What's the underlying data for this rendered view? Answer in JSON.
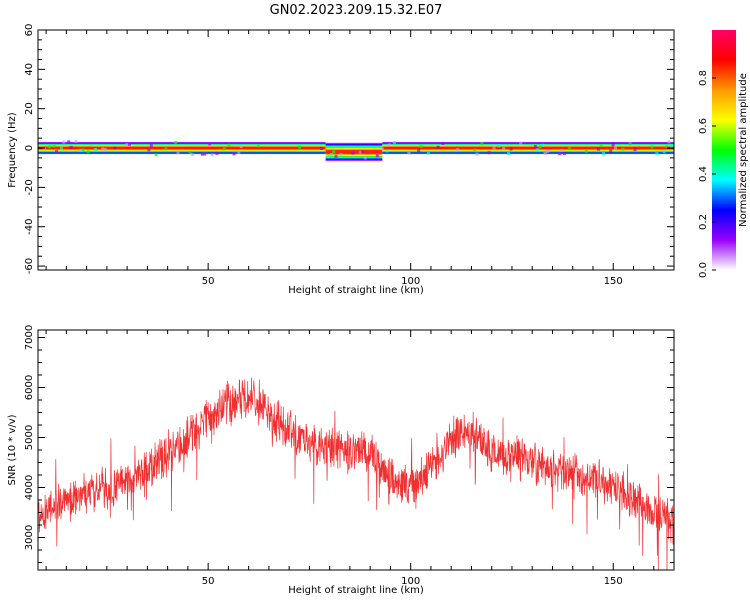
{
  "figure": {
    "title": "GN02.2023.209.15.32.E07"
  },
  "chart_data": [
    {
      "type": "heatmap",
      "xlabel": "Height of straight line (km)",
      "ylabel": "Frequency (Hz)",
      "xlim": [
        8,
        165
      ],
      "ylim": [
        -62,
        60
      ],
      "xticks": [
        50,
        100,
        150
      ],
      "xtick_labels": [
        "50",
        "100",
        "150"
      ],
      "yticks": [
        -60,
        -40,
        -20,
        0,
        20,
        40,
        60
      ],
      "ytick_labels": [
        "-60",
        "-40",
        "-20",
        "0",
        "20",
        "40",
        "60"
      ],
      "band": {
        "center_hz": 0,
        "segments": [
          {
            "x": [
              8,
              79
            ],
            "halfwidth_hz": 2
          },
          {
            "x": [
              79,
              93
            ],
            "halfwidth_hz": 3,
            "center_hz": -2
          },
          {
            "x": [
              93,
              165
            ],
            "halfwidth_hz": 2
          }
        ]
      },
      "colorbar": {
        "label": "Normalized spectral amplitude",
        "range": [
          0,
          1
        ],
        "ticks": [
          0.0,
          0.2,
          0.4,
          0.6,
          0.8
        ],
        "tick_labels": [
          "0.0",
          "0.2",
          "0.4",
          "0.6",
          "0.8"
        ],
        "colors": [
          "#ffffff",
          "#9900ff",
          "#0000ff",
          "#00ffff",
          "#00ff00",
          "#ffff00",
          "#ff9900",
          "#ff0000",
          "#ff0066"
        ]
      }
    },
    {
      "type": "line",
      "xlabel": "Height of straight line (km)",
      "ylabel": "SNR (10 * v/v)",
      "xlim": [
        8,
        165
      ],
      "ylim": [
        2350,
        7150
      ],
      "xticks": [
        50,
        100,
        150
      ],
      "xtick_labels": [
        "50",
        "100",
        "150"
      ],
      "yticks": [
        3000,
        4000,
        5000,
        6000,
        7000
      ],
      "ytick_labels": [
        "3000",
        "4000",
        "5000",
        "6000",
        "7000"
      ],
      "color": "#f03030",
      "trend": {
        "x": [
          8,
          12,
          20,
          30,
          40,
          50,
          55,
          58,
          62,
          65,
          70,
          80,
          90,
          95,
          100,
          105,
          110,
          114,
          120,
          130,
          140,
          150,
          160,
          165
        ],
        "y": [
          3400,
          3650,
          3900,
          4100,
          4600,
          5400,
          5700,
          5750,
          5750,
          5500,
          5100,
          4800,
          4700,
          4200,
          4050,
          4350,
          4950,
          5200,
          4700,
          4500,
          4300,
          4000,
          3500,
          3300
        ]
      }
    }
  ]
}
